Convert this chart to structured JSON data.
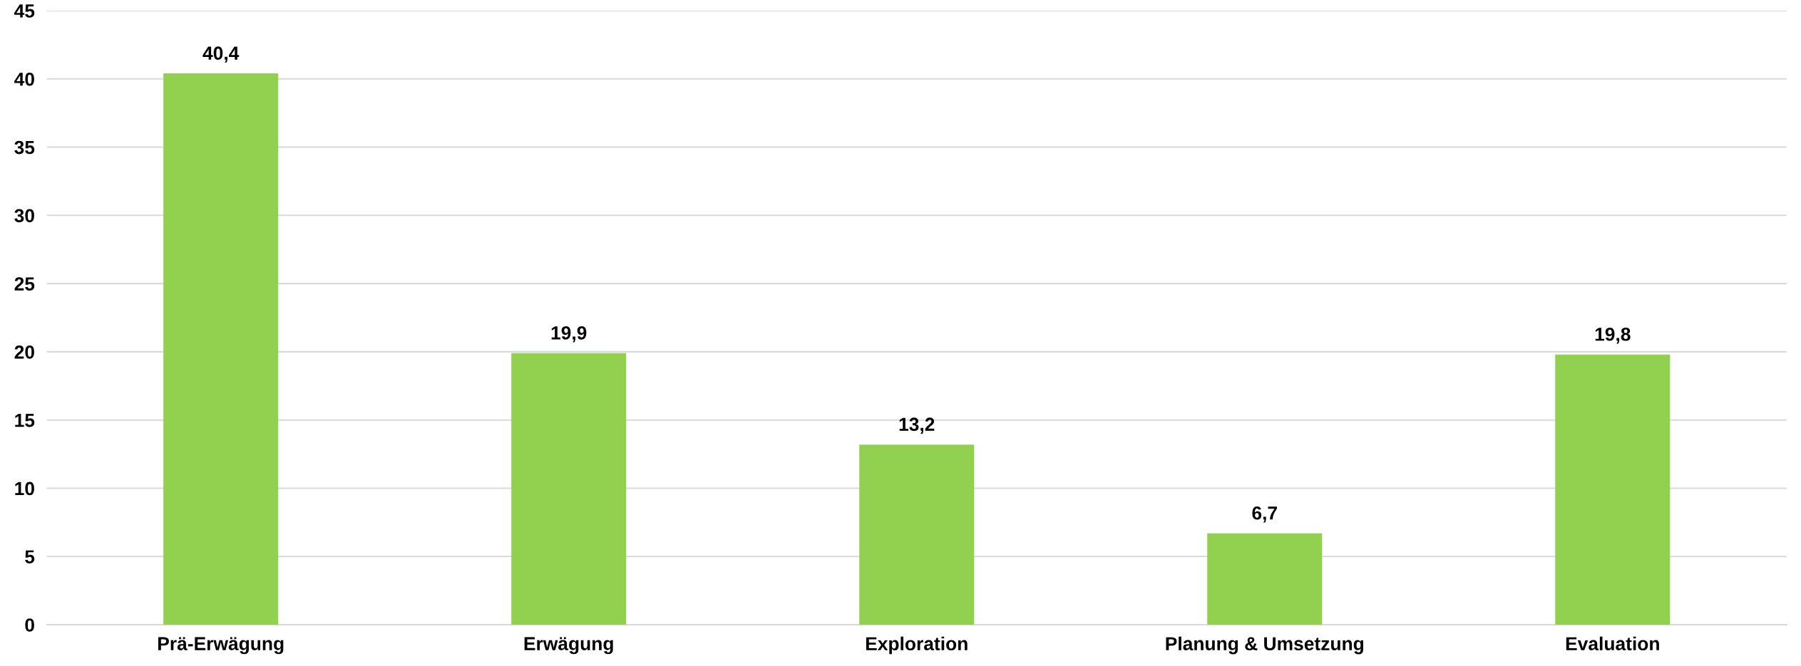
{
  "chart_data": {
    "type": "bar",
    "categories": [
      "Prä-Erwägung",
      "Erwägung",
      "Exploration",
      "Planung & Umsetzung",
      "Evaluation"
    ],
    "values": [
      40.4,
      19.9,
      13.2,
      6.7,
      19.8
    ],
    "value_labels": [
      "40,4",
      "19,9",
      "13,2",
      "6,7",
      "19,8"
    ],
    "color": "#92d050",
    "ylim": [
      0,
      45
    ],
    "yticks": [
      0,
      5,
      10,
      15,
      20,
      25,
      30,
      35,
      40,
      45
    ],
    "grid": "y",
    "legend": false
  }
}
